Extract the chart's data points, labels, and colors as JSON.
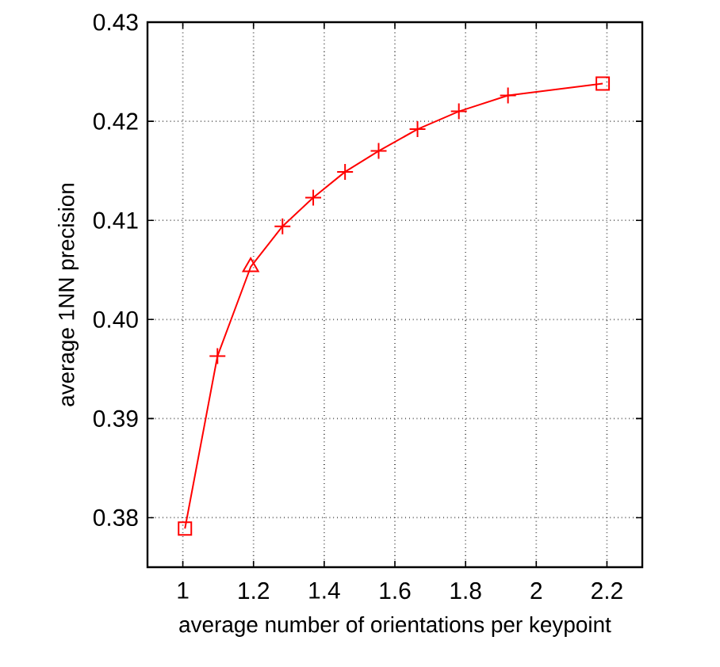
{
  "chart_data": {
    "type": "line",
    "xlabel": "average number of orientations per keypoint",
    "ylabel": "average 1NN precision",
    "xlim": [
      0.9,
      2.3
    ],
    "xticks": [
      1,
      1.2,
      1.4,
      1.6,
      1.8,
      2,
      2.2
    ],
    "ylim": [
      0.375,
      0.43
    ],
    "yticks": [
      0.38,
      0.39,
      {
        "value": 0.4,
        "label": "0.40"
      },
      0.41,
      0.42,
      0.43
    ],
    "grid": true,
    "series": [
      {
        "color": "#ff0000",
        "marker": "none",
        "line_style": "solid",
        "x": [
          1.006,
          1.098,
          1.192,
          1.282,
          1.369,
          1.459,
          1.554,
          1.664,
          1.781,
          1.92,
          2.188
        ],
        "values": [
          0.3789,
          0.3963,
          0.4053,
          0.4094,
          0.4123,
          0.4149,
          0.417,
          0.4192,
          0.421,
          0.4226,
          0.4238
        ]
      },
      {
        "type": "scatter",
        "color": "#ff0000",
        "marker": "cross",
        "x": [
          1.098,
          1.282,
          1.369,
          1.459,
          1.554,
          1.664,
          1.781,
          1.92
        ],
        "values": [
          0.3963,
          0.4094,
          0.4123,
          0.4149,
          0.417,
          0.4192,
          0.421,
          0.4226
        ]
      },
      {
        "type": "scatter",
        "color": "#ff0000",
        "marker": "square",
        "x": [
          1.006,
          2.188
        ],
        "values": [
          0.3789,
          0.4238
        ]
      },
      {
        "type": "scatter",
        "color": "#ff0000",
        "marker": "triangle",
        "x": [
          1.192
        ],
        "values": [
          0.4053
        ]
      }
    ]
  }
}
